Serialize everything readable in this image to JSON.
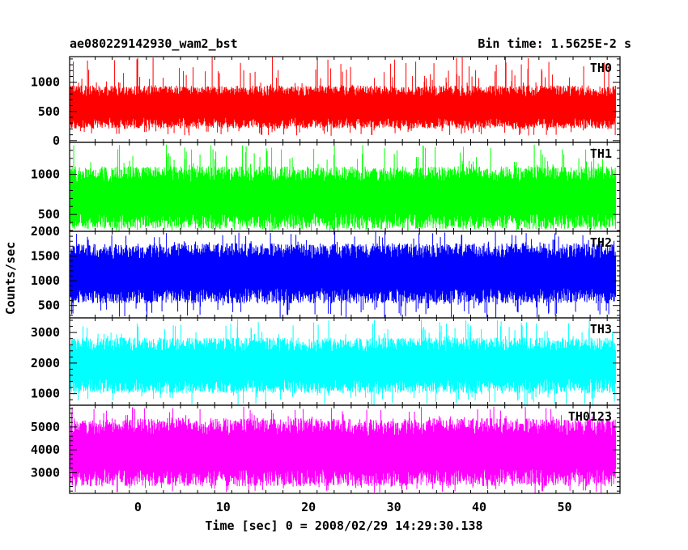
{
  "chart_data": {
    "type": "line",
    "title": "ae080229142930_wam2_bst",
    "subtitle": "Bin time: 1.5625E-2 s",
    "xlabel": "Time [sec] 0 = 2008/02/29 14:29:30.138",
    "ylabel": "Counts/sec",
    "xlim": [
      -8,
      56.5
    ],
    "x_ticks": [
      0,
      10,
      20,
      30,
      40,
      50
    ],
    "x_tick_labels": [
      "0",
      "10",
      "20",
      "30",
      "40",
      "50"
    ],
    "data_x_range": [
      -7.9,
      56.0
    ],
    "grid": false,
    "panels": [
      {
        "name": "TH0",
        "color": "#ff0000",
        "ylim": [
          -30,
          1440
        ],
        "y_ticks": [
          0,
          500,
          1000
        ],
        "y_tick_labels": [
          "0",
          "500",
          "1000"
        ],
        "typical_low": 300,
        "typical_high": 850,
        "min": 80,
        "max": 1440
      },
      {
        "name": "TH1",
        "color": "#00ff00",
        "ylim": [
          290,
          1400
        ],
        "y_ticks": [
          500,
          1000
        ],
        "y_tick_labels": [
          "500",
          "1000"
        ],
        "typical_low": 420,
        "typical_high": 1000,
        "min": 290,
        "max": 1400
      },
      {
        "name": "TH2",
        "color": "#0000ff",
        "ylim": [
          250,
          2000
        ],
        "y_ticks": [
          500,
          1000,
          1500,
          2000
        ],
        "y_tick_labels": [
          "500",
          "1000",
          "1500",
          "2000"
        ],
        "typical_low": 700,
        "typical_high": 1600,
        "min": 250,
        "max": 2000
      },
      {
        "name": "TH3",
        "color": "#00ffff",
        "ylim": [
          620,
          3480
        ],
        "y_ticks": [
          1000,
          2000,
          3000
        ],
        "y_tick_labels": [
          "1000",
          "2000",
          "3000"
        ],
        "typical_low": 1250,
        "typical_high": 2600,
        "min": 620,
        "max": 3480
      },
      {
        "name": "TH0123",
        "color": "#ff00ff",
        "ylim": [
          2100,
          5950
        ],
        "y_ticks": [
          3000,
          4000,
          5000
        ],
        "y_tick_labels": [
          "3000",
          "4000",
          "5000"
        ],
        "typical_low": 2800,
        "typical_high": 5000,
        "min": 2100,
        "max": 5950
      }
    ]
  }
}
